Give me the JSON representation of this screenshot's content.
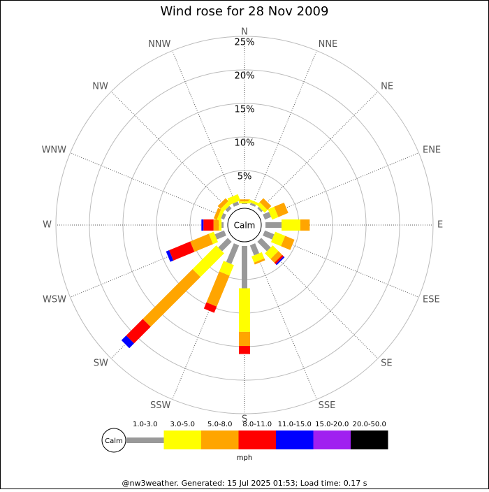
{
  "chart_data": {
    "type": "wind_rose",
    "title": "Wind rose for 28 Nov 2009",
    "directions": [
      "N",
      "NNE",
      "NE",
      "ENE",
      "E",
      "ESE",
      "SE",
      "SSE",
      "S",
      "SSW",
      "SW",
      "WSW",
      "W",
      "WNW",
      "NW",
      "NNW"
    ],
    "series": [
      {
        "name": "1.0-3.0",
        "color": "#999999",
        "values": [
          0.1,
          0.3,
          0.3,
          1,
          2.4,
          1.5,
          2,
          1.6,
          6.3,
          3,
          2,
          1.5,
          0.3,
          0.5,
          0.5,
          0.5
        ]
      },
      {
        "name": "3.0-5.0",
        "color": "#ffff00",
        "values": [
          0.3,
          0.4,
          0.6,
          1,
          2.8,
          1.6,
          1.2,
          1,
          6.5,
          1.7,
          5,
          0.8,
          0.4,
          0.5,
          0.6,
          1
        ]
      },
      {
        "name": "5.0-8.0",
        "color": "#ffa500",
        "values": [
          0.3,
          0,
          0.8,
          1.6,
          1.4,
          1.5,
          0.8,
          0.3,
          2.1,
          5,
          10.5,
          3,
          0.8,
          0.5,
          0.6,
          0
        ]
      },
      {
        "name": "8.0-11.0",
        "color": "#ff0000",
        "values": [
          0,
          0,
          0,
          0,
          0,
          0,
          0.3,
          0,
          1.2,
          1,
          3.5,
          3.4,
          1.5,
          0,
          0,
          0
        ]
      },
      {
        "name": "11.0-15.0",
        "color": "#0000ff",
        "values": [
          0,
          0,
          0,
          0,
          0,
          0,
          0.2,
          0,
          0,
          0,
          1,
          0.5,
          0.3,
          0,
          0,
          0
        ]
      },
      {
        "name": "15.0-20.0",
        "color": "#a020f0",
        "values": [
          0,
          0,
          0,
          0,
          0,
          0,
          0,
          0,
          0,
          0,
          0,
          0,
          0,
          0,
          0,
          0
        ]
      },
      {
        "name": "20.0-50.0",
        "color": "#000000",
        "values": [
          0,
          0,
          0,
          0,
          0,
          0,
          0,
          0,
          0,
          0,
          0,
          0,
          0,
          0,
          0,
          0
        ]
      }
    ],
    "rlim": [
      0,
      25
    ],
    "rticks": [
      {
        "value": 5,
        "label": "5%"
      },
      {
        "value": 10,
        "label": "10%"
      },
      {
        "value": 15,
        "label": "15%"
      },
      {
        "value": 20,
        "label": "20%"
      },
      {
        "value": 25,
        "label": "25%"
      }
    ],
    "grid": true,
    "calm_label": "Calm",
    "unit": "mph"
  },
  "footer": "@nw3weather. Generated: 15 Jul 2025 01:53; Load time: 0.17 s"
}
